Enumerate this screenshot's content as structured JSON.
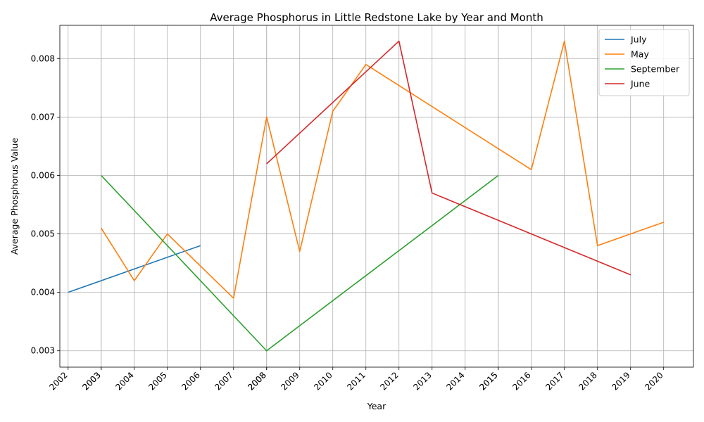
{
  "chart_data": {
    "type": "line",
    "title": "Average Phosphorus in Little Redstone Lake by Year and Month",
    "xlabel": "Year",
    "ylabel": "Average Phosphorus Value",
    "x_ticks": [
      "2002",
      "2003",
      "2003",
      "2004",
      "2005",
      "2006",
      "2007",
      "2008",
      "2008",
      "2009",
      "2010",
      "2011",
      "2012",
      "2013",
      "2014",
      "2015",
      "2015",
      "2016",
      "2017",
      "2018",
      "2019",
      "2020"
    ],
    "y_ticks": [
      "0.003",
      "0.004",
      "0.005",
      "0.006",
      "0.007",
      "0.008"
    ],
    "xlim": [
      2001.75,
      2020.9
    ],
    "ylim": [
      0.00272,
      0.00857
    ],
    "grid": true,
    "legend_position": "top-right",
    "series": [
      {
        "name": "July",
        "color": "#1f77b4",
        "points": [
          [
            2002,
            0.004
          ],
          [
            2006,
            0.0048
          ]
        ]
      },
      {
        "name": "May",
        "color": "#ff7f0e",
        "points": [
          [
            2003,
            0.0051
          ],
          [
            2004,
            0.0042
          ],
          [
            2005,
            0.005
          ],
          [
            2007,
            0.0039
          ],
          [
            2008,
            0.007
          ],
          [
            2009,
            0.0047
          ],
          [
            2010,
            0.0071
          ],
          [
            2011,
            0.0079
          ],
          [
            2016,
            0.0061
          ],
          [
            2017,
            0.0083
          ],
          [
            2018,
            0.0048
          ],
          [
            2020,
            0.0052
          ]
        ]
      },
      {
        "name": "September",
        "color": "#2ca02c",
        "points": [
          [
            2003,
            0.006
          ],
          [
            2008,
            0.003
          ],
          [
            2015,
            0.006
          ]
        ]
      },
      {
        "name": "June",
        "color": "#d62728",
        "points": [
          [
            2008,
            0.0062
          ],
          [
            2012,
            0.0083
          ],
          [
            2013,
            0.0057
          ],
          [
            2019,
            0.0043
          ]
        ]
      }
    ]
  }
}
